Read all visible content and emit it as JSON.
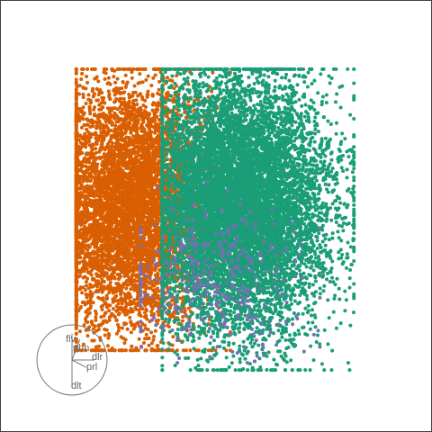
{
  "chart_data": {
    "type": "scatter",
    "title": "",
    "xlabel": "",
    "ylabel": "",
    "grid": false,
    "legend": "none",
    "xlim": [
      -1,
      1
    ],
    "ylim": [
      -1,
      1
    ],
    "series": [
      {
        "color": "#D95F02",
        "count": 6500,
        "center": [
          -0.48,
          0.06
        ],
        "spread": [
          0.23,
          0.34
        ],
        "extent": [
          [
            -0.78,
            0.08
          ],
          [
            -0.75,
            0.82
          ]
        ]
      },
      {
        "color": "#1B9E77",
        "count": 9500,
        "center": [
          0.13,
          0.06
        ],
        "spread": [
          0.25,
          0.35
        ],
        "extent": [
          [
            -0.3,
            0.77
          ],
          [
            -0.86,
            0.82
          ]
        ]
      },
      {
        "color": "#7570B3",
        "count": 350,
        "center": [
          -0.02,
          -0.35
        ],
        "spread": [
          0.27,
          0.2
        ],
        "extent": [
          [
            -0.42,
            0.58
          ],
          [
            -0.82,
            0.22
          ]
        ]
      }
    ],
    "axes_glyph": {
      "axes": [
        {
          "label": "flv",
          "direction": [
            0.0,
            1.0
          ]
        },
        {
          "label": "phn",
          "direction": [
            0.3,
            0.78
          ]
        },
        {
          "label": "dlr",
          "direction": [
            0.85,
            0.0
          ]
        },
        {
          "label": "prl",
          "direction": [
            0.54,
            -0.28
          ]
        },
        {
          "label": "dlt",
          "direction": [
            0.0,
            -1.0
          ]
        }
      ]
    }
  }
}
